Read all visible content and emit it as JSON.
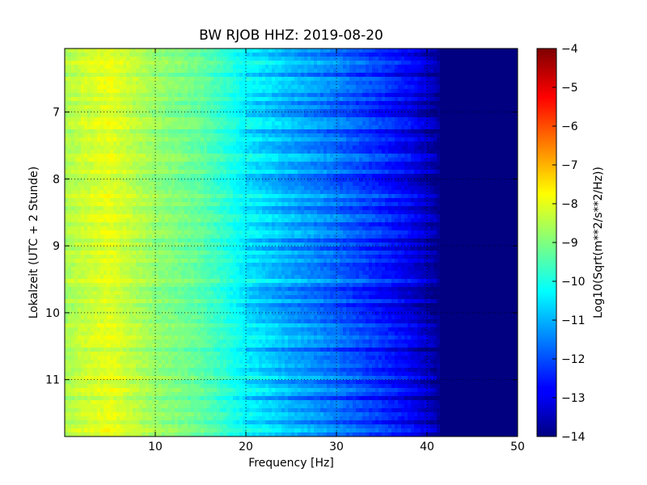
{
  "chart_data": {
    "type": "heatmap",
    "title": "BW RJOB HHZ: 2019-08-20",
    "xlabel": "Frequency [Hz]",
    "ylabel": "Lokalzeit (UTC + 2 Stunde)",
    "xlim": [
      0,
      50
    ],
    "ylim": [
      11.85,
      6.05
    ],
    "y_inverted": true,
    "grid": true,
    "xticks": [
      10,
      20,
      30,
      40,
      50
    ],
    "xtick_labels": [
      "10",
      "20",
      "30",
      "40",
      "50"
    ],
    "yticks": [
      7,
      8,
      9,
      10,
      11
    ],
    "ytick_labels": [
      "7",
      "8",
      "9",
      "10",
      "11"
    ],
    "colormap": "jet",
    "colorbar": {
      "label": "Log10(Sqrt(m**2/s**2/Hz))",
      "range": [
        -14,
        -4
      ],
      "ticks": [
        -4,
        -5,
        -6,
        -7,
        -8,
        -9,
        -10,
        -11,
        -12,
        -13,
        -14
      ],
      "tick_labels": [
        "−4",
        "−5",
        "−6",
        "−7",
        "−8",
        "−9",
        "−10",
        "−11",
        "−12",
        "−13",
        "−14"
      ]
    },
    "spectral_profile": {
      "frequency_hz": [
        0,
        2,
        5,
        10,
        15,
        18,
        20,
        25,
        30,
        35,
        38,
        40,
        42,
        50
      ],
      "log10_amplitude": [
        -8.6,
        -8.3,
        -8.0,
        -8.8,
        -9.3,
        -9.9,
        -10.4,
        -11.1,
        -11.7,
        -12.4,
        -12.9,
        -13.4,
        -14.0,
        -14.0
      ]
    }
  }
}
